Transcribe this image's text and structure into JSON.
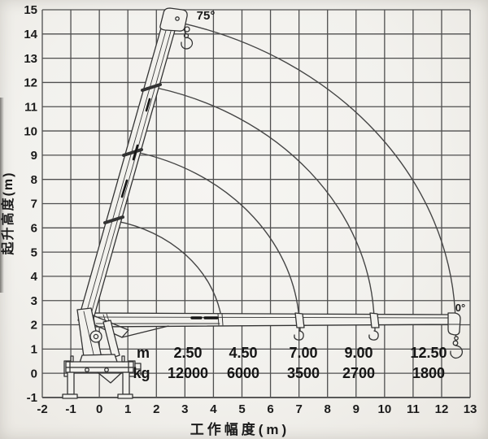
{
  "chart": {
    "y_axis_title": "起升高度(m)",
    "x_axis_title": "工作幅度(m)",
    "x_ticks": [
      -2,
      -1,
      0,
      1,
      2,
      3,
      4,
      5,
      6,
      7,
      8,
      9,
      10,
      11,
      12,
      13
    ],
    "y_ticks": [
      15,
      14,
      13,
      12,
      11,
      10,
      9,
      8,
      7,
      6,
      5,
      4,
      3,
      2,
      1,
      0,
      -1
    ],
    "boom_max_angle_label": "75°",
    "boom_min_angle_label": "0°"
  },
  "chart_data": {
    "type": "line",
    "description": "Truck-mounted telescopic crane working-range diagram with boom-tip arcs and rated load table",
    "xlabel": "工作幅度(m)",
    "ylabel": "起升高度(m)",
    "xlim": [
      -2,
      13
    ],
    "ylim": [
      -1,
      15
    ],
    "grid": true,
    "legend": "none",
    "boom_pivot_xy_m": [
      -0.55,
      2.3
    ],
    "boom_angle_range_deg": [
      0,
      75
    ],
    "boom_tip_arcs": [
      {
        "radius_m": 4.8,
        "from": [
          0.59,
          6.28
        ],
        "to": [
          4.27,
          2.35
        ]
      },
      {
        "radius_m": 7.6,
        "from": [
          1.28,
          9.13
        ],
        "to": [
          7.0,
          2.35
        ]
      },
      {
        "radius_m": 10.2,
        "from": [
          2.0,
          11.78
        ],
        "to": [
          9.63,
          2.35
        ]
      },
      {
        "radius_m": 13.0,
        "from": [
          2.9,
          14.45
        ],
        "to": [
          12.48,
          2.35
        ]
      }
    ],
    "load_table": {
      "row_labels": [
        "m",
        "kg"
      ],
      "radius_m": [
        "2.50",
        "4.50",
        "7.00",
        "9.00",
        "12.50"
      ],
      "capacity_kg": [
        "12000",
        "6000",
        "3500",
        "2700",
        "1800"
      ]
    },
    "colors": {
      "paper": "#f2f1ed",
      "grid": "#4f4f4f",
      "ink": "#333333",
      "arc": "#454545",
      "text": "#1b1b1b"
    }
  }
}
